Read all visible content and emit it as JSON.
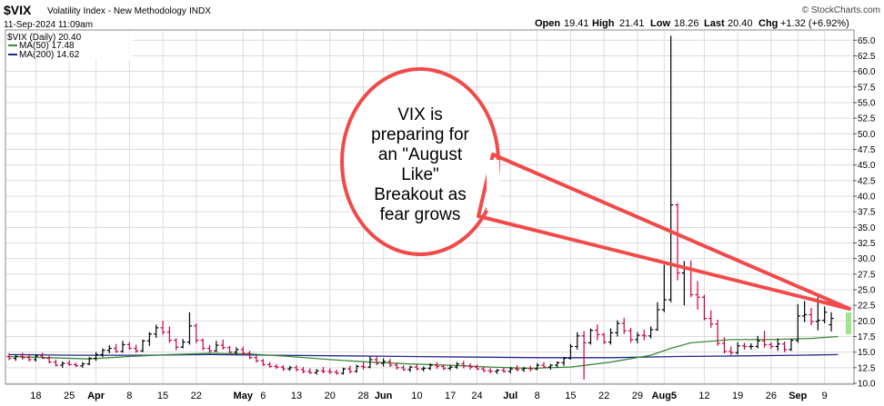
{
  "header": {
    "symbol": "$VIX",
    "name": "Volatility Index - New Methodology",
    "exchange": "INDX",
    "datetime": "11-Sep-2024 11:09am",
    "open_label": "Open",
    "open": "19.41",
    "high_label": "High",
    "high": "21.41",
    "low_label": "Low",
    "low": "18.26",
    "last_label": "Last",
    "last": "20.40",
    "chg_label": "Chg",
    "chg": "+1.32 (+6.92%)",
    "watermark": "© StockCharts.com"
  },
  "legend": {
    "price": "$VIX (Daily) 20.40",
    "ma50": "MA(50) 17.48",
    "ma200": "MA(200) 14.62"
  },
  "annotation": {
    "lines": [
      "VIX is",
      "preparing for",
      "an \"August",
      "Like\"",
      "Breakout as",
      "fear grows"
    ]
  },
  "colors": {
    "up": "#000000",
    "down": "#cc0044",
    "ma50": "#3a8a3a",
    "ma200": "#1f2a8c",
    "callout": "#f04a4a",
    "grid": "#dcdcdc",
    "last_marker": "#8ee07a"
  },
  "chart_data": {
    "type": "ohlc",
    "title": "$VIX (Daily)",
    "ylim": [
      10.0,
      66.5
    ],
    "y_ticks": [
      10.0,
      12.5,
      15.0,
      17.5,
      20.0,
      22.5,
      25.0,
      27.5,
      30.0,
      32.5,
      35.0,
      37.5,
      40.0,
      42.5,
      45.0,
      47.5,
      50.0,
      52.5,
      55.0,
      57.5,
      60.0,
      62.5,
      65.0
    ],
    "y_tick_labels": [
      "10.0",
      "12.5",
      "15.0",
      "17.5",
      "20.0",
      "22.5",
      "25.0",
      "27.5",
      "30.0",
      "32.5",
      "35.0",
      "37.5",
      "40.0",
      "42.5",
      "45.0",
      "47.5",
      "50.0",
      "52.5",
      "55.0",
      "57.5",
      "60.0",
      "62.5",
      "65.0"
    ],
    "x_ticks": [
      {
        "i": 4,
        "label": "18",
        "bold": false
      },
      {
        "i": 9,
        "label": "25",
        "bold": false
      },
      {
        "i": 13,
        "label": "Apr",
        "bold": true
      },
      {
        "i": 18,
        "label": "8",
        "bold": false
      },
      {
        "i": 23,
        "label": "15",
        "bold": false
      },
      {
        "i": 28,
        "label": "22",
        "bold": false
      },
      {
        "i": 35,
        "label": "May",
        "bold": true
      },
      {
        "i": 38,
        "label": "6",
        "bold": false
      },
      {
        "i": 43,
        "label": "13",
        "bold": false
      },
      {
        "i": 48,
        "label": "20",
        "bold": false
      },
      {
        "i": 53,
        "label": "28",
        "bold": false
      },
      {
        "i": 56,
        "label": "Jun",
        "bold": true
      },
      {
        "i": 61,
        "label": "10",
        "bold": false
      },
      {
        "i": 66,
        "label": "17",
        "bold": false
      },
      {
        "i": 70,
        "label": "24",
        "bold": false
      },
      {
        "i": 75,
        "label": "Jul",
        "bold": true
      },
      {
        "i": 79,
        "label": "8",
        "bold": false
      },
      {
        "i": 84,
        "label": "15",
        "bold": false
      },
      {
        "i": 89,
        "label": "22",
        "bold": false
      },
      {
        "i": 94,
        "label": "29",
        "bold": false
      },
      {
        "i": 98,
        "label": "Aug5",
        "bold": true
      },
      {
        "i": 104,
        "label": "12",
        "bold": false
      },
      {
        "i": 109,
        "label": "19",
        "bold": false
      },
      {
        "i": 114,
        "label": "26",
        "bold": false
      },
      {
        "i": 118,
        "label": "Sep",
        "bold": true
      },
      {
        "i": 122,
        "label": "9",
        "bold": false
      }
    ],
    "ohlc": [
      [
        14.3,
        14.8,
        13.7,
        14.0
      ],
      [
        14.0,
        14.6,
        13.6,
        14.3
      ],
      [
        14.3,
        14.9,
        13.8,
        14.1
      ],
      [
        14.1,
        14.7,
        13.5,
        13.8
      ],
      [
        13.8,
        14.6,
        13.5,
        14.4
      ],
      [
        14.4,
        14.9,
        13.9,
        14.0
      ],
      [
        14.0,
        14.4,
        13.2,
        13.4
      ],
      [
        13.4,
        13.8,
        12.7,
        12.9
      ],
      [
        12.9,
        13.5,
        12.5,
        13.2
      ],
      [
        13.2,
        13.7,
        12.8,
        13.0
      ],
      [
        13.0,
        13.3,
        12.6,
        12.8
      ],
      [
        12.8,
        13.4,
        12.5,
        13.1
      ],
      [
        13.1,
        14.2,
        12.9,
        14.0
      ],
      [
        14.0,
        15.0,
        13.6,
        14.6
      ],
      [
        14.6,
        15.6,
        14.2,
        15.3
      ],
      [
        15.3,
        16.1,
        14.8,
        15.6
      ],
      [
        15.6,
        16.3,
        14.9,
        15.1
      ],
      [
        15.1,
        16.8,
        14.9,
        16.2
      ],
      [
        16.2,
        16.6,
        15.4,
        15.6
      ],
      [
        15.6,
        16.2,
        14.9,
        15.2
      ],
      [
        15.2,
        17.0,
        15.0,
        16.8
      ],
      [
        16.8,
        18.2,
        16.0,
        17.9
      ],
      [
        17.9,
        19.4,
        17.3,
        18.9
      ],
      [
        18.9,
        20.0,
        17.8,
        18.2
      ],
      [
        18.2,
        19.1,
        16.5,
        16.9
      ],
      [
        16.9,
        17.2,
        15.3,
        15.8
      ],
      [
        15.8,
        17.1,
        15.6,
        16.6
      ],
      [
        16.6,
        21.4,
        16.2,
        19.2
      ],
      [
        19.2,
        19.6,
        16.4,
        16.9
      ],
      [
        16.9,
        17.2,
        15.3,
        15.6
      ],
      [
        15.6,
        16.1,
        14.9,
        15.2
      ],
      [
        15.2,
        16.8,
        15.0,
        16.1
      ],
      [
        16.1,
        17.0,
        15.4,
        15.7
      ],
      [
        15.7,
        16.0,
        14.8,
        15.0
      ],
      [
        15.0,
        15.8,
        14.6,
        15.4
      ],
      [
        15.4,
        15.9,
        14.5,
        14.8
      ],
      [
        14.8,
        15.2,
        13.9,
        14.1
      ],
      [
        14.1,
        14.5,
        13.3,
        13.6
      ],
      [
        13.6,
        13.9,
        12.8,
        13.0
      ],
      [
        13.0,
        13.4,
        12.5,
        12.7
      ],
      [
        12.7,
        13.1,
        12.3,
        12.6
      ],
      [
        12.6,
        12.9,
        12.0,
        12.3
      ],
      [
        12.3,
        12.8,
        12.0,
        12.5
      ],
      [
        12.5,
        12.9,
        11.9,
        12.2
      ],
      [
        12.2,
        12.6,
        11.6,
        11.9
      ],
      [
        11.9,
        12.4,
        11.5,
        11.7
      ],
      [
        11.7,
        12.3,
        11.4,
        12.0
      ],
      [
        12.0,
        12.6,
        11.6,
        11.9
      ],
      [
        11.9,
        12.4,
        11.5,
        11.8
      ],
      [
        11.8,
        12.2,
        11.4,
        11.6
      ],
      [
        11.6,
        12.5,
        11.4,
        12.3
      ],
      [
        12.3,
        12.8,
        11.6,
        11.9
      ],
      [
        11.9,
        13.0,
        11.7,
        12.7
      ],
      [
        12.7,
        13.4,
        12.2,
        12.6
      ],
      [
        12.6,
        14.3,
        12.4,
        13.8
      ],
      [
        13.8,
        14.4,
        12.9,
        13.2
      ],
      [
        13.2,
        14.0,
        12.7,
        13.5
      ],
      [
        13.5,
        13.9,
        12.6,
        12.9
      ],
      [
        12.9,
        13.3,
        12.2,
        12.5
      ],
      [
        12.5,
        12.9,
        12.0,
        12.2
      ],
      [
        12.2,
        12.8,
        11.8,
        12.6
      ],
      [
        12.6,
        13.0,
        12.1,
        12.3
      ],
      [
        12.3,
        12.7,
        11.9,
        12.4
      ],
      [
        12.4,
        13.2,
        12.1,
        12.9
      ],
      [
        12.9,
        13.4,
        12.3,
        12.7
      ],
      [
        12.7,
        13.0,
        12.1,
        12.4
      ],
      [
        12.4,
        12.9,
        12.1,
        12.6
      ],
      [
        12.6,
        13.4,
        12.3,
        13.1
      ],
      [
        13.1,
        13.6,
        12.4,
        12.8
      ],
      [
        12.8,
        13.2,
        12.2,
        12.6
      ],
      [
        12.6,
        13.0,
        12.1,
        12.3
      ],
      [
        12.3,
        12.6,
        11.8,
        12.0
      ],
      [
        12.0,
        12.4,
        11.6,
        11.9
      ],
      [
        11.9,
        12.3,
        11.5,
        12.1
      ],
      [
        12.1,
        12.5,
        11.7,
        11.9
      ],
      [
        11.9,
        12.6,
        11.6,
        12.3
      ],
      [
        12.3,
        12.9,
        11.9,
        12.2
      ],
      [
        12.2,
        12.6,
        11.8,
        12.4
      ],
      [
        12.4,
        12.8,
        11.9,
        12.3
      ],
      [
        12.3,
        13.2,
        12.1,
        12.9
      ],
      [
        12.9,
        13.4,
        12.4,
        12.6
      ],
      [
        12.6,
        13.1,
        12.2,
        12.9
      ],
      [
        12.9,
        13.5,
        12.5,
        13.3
      ],
      [
        13.3,
        14.2,
        12.8,
        14.0
      ],
      [
        14.0,
        16.3,
        13.8,
        15.9
      ],
      [
        15.9,
        18.2,
        15.4,
        17.6
      ],
      [
        17.6,
        18.4,
        10.6,
        16.5
      ],
      [
        16.5,
        18.8,
        16.2,
        18.5
      ],
      [
        18.5,
        19.4,
        16.9,
        17.8
      ],
      [
        17.8,
        18.1,
        16.3,
        16.6
      ],
      [
        16.6,
        18.8,
        16.2,
        18.1
      ],
      [
        18.1,
        20.1,
        17.5,
        19.6
      ],
      [
        19.6,
        20.5,
        17.9,
        18.4
      ],
      [
        18.4,
        18.9,
        16.5,
        17.0
      ],
      [
        17.0,
        18.2,
        16.4,
        17.7
      ],
      [
        17.7,
        18.6,
        16.9,
        17.6
      ],
      [
        17.6,
        19.1,
        17.2,
        18.6
      ],
      [
        18.6,
        23.0,
        18.4,
        21.8
      ],
      [
        21.8,
        29.0,
        21.4,
        23.4
      ],
      [
        23.4,
        65.7,
        23.0,
        38.6
      ],
      [
        38.6,
        38.9,
        26.5,
        27.7
      ],
      [
        27.7,
        29.6,
        22.5,
        28.3
      ],
      [
        28.3,
        29.7,
        23.8,
        24.2
      ],
      [
        24.2,
        26.4,
        21.8,
        23.8
      ],
      [
        23.8,
        24.2,
        20.1,
        20.4
      ],
      [
        20.4,
        21.7,
        18.9,
        19.5
      ],
      [
        19.5,
        20.2,
        16.0,
        16.4
      ],
      [
        16.4,
        17.4,
        14.8,
        15.1
      ],
      [
        15.1,
        15.9,
        14.5,
        14.9
      ],
      [
        14.9,
        16.6,
        14.6,
        16.0
      ],
      [
        16.0,
        16.5,
        15.4,
        15.9
      ],
      [
        15.9,
        16.4,
        15.4,
        15.9
      ],
      [
        15.9,
        17.6,
        15.6,
        16.8
      ],
      [
        16.8,
        18.4,
        15.7,
        16.2
      ],
      [
        16.2,
        16.6,
        15.5,
        15.9
      ],
      [
        15.9,
        17.2,
        15.2,
        16.3
      ],
      [
        16.3,
        16.7,
        15.0,
        15.4
      ],
      [
        15.4,
        17.1,
        15.2,
        16.9
      ],
      [
        16.9,
        22.7,
        16.5,
        20.8
      ],
      [
        20.8,
        23.2,
        19.8,
        21.0
      ],
      [
        21.0,
        22.1,
        19.3,
        19.9
      ],
      [
        19.9,
        23.8,
        18.5,
        20.1
      ],
      [
        20.1,
        22.3,
        19.6,
        21.4
      ],
      [
        19.4,
        21.4,
        18.3,
        20.4
      ]
    ],
    "ma50": [
      [
        0,
        14.3
      ],
      [
        6,
        14.1
      ],
      [
        12,
        13.9
      ],
      [
        18,
        14.3
      ],
      [
        24,
        14.6
      ],
      [
        30,
        14.8
      ],
      [
        36,
        14.7
      ],
      [
        42,
        14.3
      ],
      [
        48,
        13.8
      ],
      [
        54,
        13.4
      ],
      [
        60,
        13.1
      ],
      [
        66,
        12.9
      ],
      [
        72,
        12.6
      ],
      [
        78,
        12.4
      ],
      [
        84,
        12.6
      ],
      [
        90,
        13.4
      ],
      [
        96,
        14.5
      ],
      [
        99,
        15.6
      ],
      [
        102,
        16.5
      ],
      [
        108,
        17.0
      ],
      [
        114,
        17.0
      ],
      [
        120,
        17.2
      ],
      [
        124,
        17.5
      ]
    ],
    "ma200": [
      [
        0,
        14.6
      ],
      [
        10,
        14.5
      ],
      [
        20,
        14.5
      ],
      [
        30,
        14.6
      ],
      [
        40,
        14.5
      ],
      [
        50,
        14.4
      ],
      [
        60,
        14.3
      ],
      [
        70,
        14.2
      ],
      [
        80,
        14.1
      ],
      [
        90,
        14.1
      ],
      [
        100,
        14.3
      ],
      [
        110,
        14.4
      ],
      [
        118,
        14.5
      ],
      [
        124,
        14.6
      ]
    ]
  }
}
